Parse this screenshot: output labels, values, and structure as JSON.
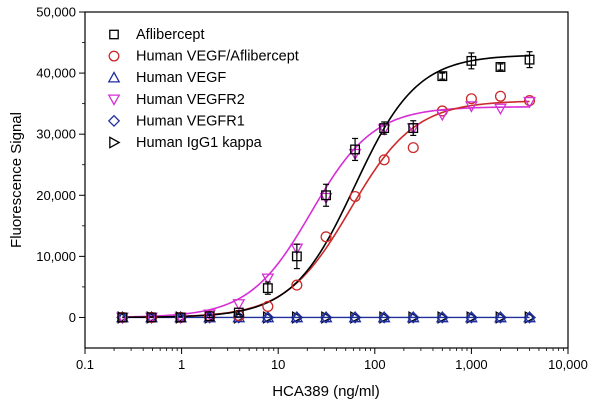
{
  "chart_data": {
    "type": "scatter",
    "title": "",
    "xlabel": "HCA389 (ng/ml)",
    "ylabel": "Fluorescence Signal",
    "x_scale": "log",
    "xlim": [
      0.1,
      10000
    ],
    "ylim": [
      -5000,
      50000
    ],
    "x_ticks": [
      0.1,
      1,
      10,
      100,
      1000,
      10000
    ],
    "x_tick_labels": [
      "0.1",
      "1",
      "10",
      "100",
      "1,000",
      "10,000"
    ],
    "y_ticks": [
      0,
      10000,
      20000,
      30000,
      40000,
      50000
    ],
    "y_tick_labels": [
      "0",
      "10,000",
      "20,000",
      "30,000",
      "40,000",
      "50,000"
    ],
    "grid": false,
    "legend_position": "top-left",
    "series": [
      {
        "name": "Aflibercept",
        "marker": "square",
        "color": "#000000",
        "x": [
          0.244,
          0.488,
          0.977,
          1.95,
          3.91,
          7.81,
          15.6,
          31.3,
          62.5,
          125,
          250,
          500,
          1000,
          2000,
          4000
        ],
        "y": [
          0,
          0,
          0,
          200,
          800,
          4800,
          10000,
          20000,
          27500,
          31000,
          31000,
          39500,
          42000,
          41000,
          42200
        ],
        "err": [
          0,
          0,
          0,
          200,
          300,
          1000,
          2000,
          1800,
          1800,
          1000,
          1200,
          500,
          1300,
          500,
          1300
        ],
        "fit": {
          "bottom": 0,
          "top": 43000,
          "ec50": 62,
          "hill": 1.35
        }
      },
      {
        "name": "Human VEGF/Aflibercept",
        "marker": "circle",
        "color": "#cc2a2a",
        "x": [
          0.244,
          0.488,
          0.977,
          1.95,
          3.91,
          7.81,
          15.6,
          31.3,
          62.5,
          125,
          250,
          500,
          1000,
          2000,
          4000
        ],
        "y": [
          0,
          0,
          0,
          200,
          300,
          1800,
          5300,
          13200,
          19800,
          25800,
          27800,
          33800,
          35800,
          36200,
          35500
        ],
        "fit": {
          "bottom": 0,
          "top": 35500,
          "ec50": 56,
          "hill": 1.3
        }
      },
      {
        "name": "Human VEGF",
        "marker": "triangle-up",
        "color": "#1f2f9c",
        "x": [
          0.244,
          0.488,
          0.977,
          1.95,
          3.91,
          7.81,
          15.6,
          31.3,
          62.5,
          125,
          250,
          500,
          1000,
          2000,
          4000
        ],
        "y": [
          0,
          0,
          0,
          0,
          0,
          0,
          0,
          0,
          0,
          0,
          0,
          0,
          0,
          0,
          0
        ]
      },
      {
        "name": "Human VEGFR2",
        "marker": "triangle-down",
        "color": "#d62fd6",
        "x": [
          0.244,
          0.488,
          0.977,
          1.95,
          3.91,
          7.81,
          15.6,
          31.3,
          62.5,
          125,
          250,
          500,
          1000,
          2000,
          4000
        ],
        "y": [
          0,
          0,
          0,
          500,
          2200,
          6400,
          11300,
          19600,
          26800,
          30800,
          31000,
          33200,
          34600,
          34200,
          35300
        ],
        "fit": {
          "bottom": 0,
          "top": 34500,
          "ec50": 22,
          "hill": 1.35
        }
      },
      {
        "name": "Human VEGFR1",
        "marker": "diamond",
        "color": "#1f2f9c",
        "x": [
          0.244,
          0.488,
          0.977,
          1.95,
          3.91,
          7.81,
          15.6,
          31.3,
          62.5,
          125,
          250,
          500,
          1000,
          2000,
          4000
        ],
        "y": [
          0,
          0,
          0,
          0,
          0,
          0,
          0,
          0,
          0,
          0,
          0,
          0,
          0,
          0,
          0
        ]
      },
      {
        "name": "Human IgG1 kappa",
        "marker": "triangle-right",
        "color": "#000000",
        "x": [
          0.244,
          0.488,
          0.977,
          1.95,
          3.91,
          7.81,
          15.6,
          31.3,
          62.5,
          125,
          250,
          500,
          1000,
          2000,
          4000
        ],
        "y": [
          0,
          0,
          0,
          0,
          0,
          0,
          0,
          0,
          0,
          0,
          0,
          0,
          0,
          0,
          0
        ]
      }
    ],
    "flat_line_color": "#1f2f9c"
  }
}
